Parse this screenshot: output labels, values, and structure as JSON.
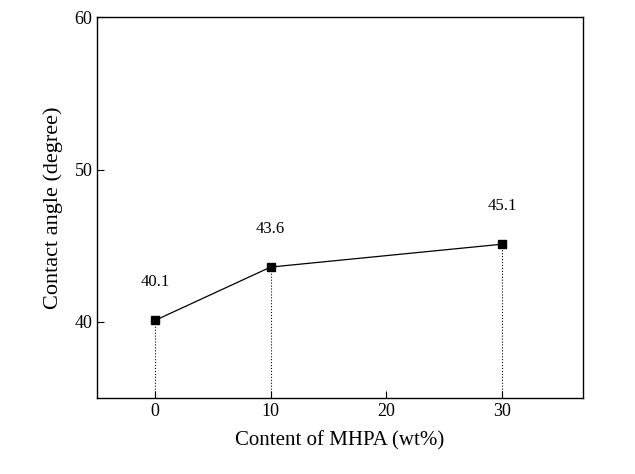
{
  "chart_data": {
    "type": "line",
    "x_label": "Content of MHPA (wt%)",
    "y_label": "Contact angle (degree)",
    "x": [
      0,
      10,
      30
    ],
    "values": [
      40.1,
      43.6,
      45.1
    ],
    "color": "#000000",
    "marker": "square",
    "line_style": "solid",
    "data_labels": true,
    "xlim": [
      -5,
      37
    ],
    "xticks": [
      0,
      10,
      20,
      30
    ],
    "ylim": [
      35,
      60
    ],
    "yticks": [
      40,
      50,
      60
    ],
    "grid": false
  }
}
